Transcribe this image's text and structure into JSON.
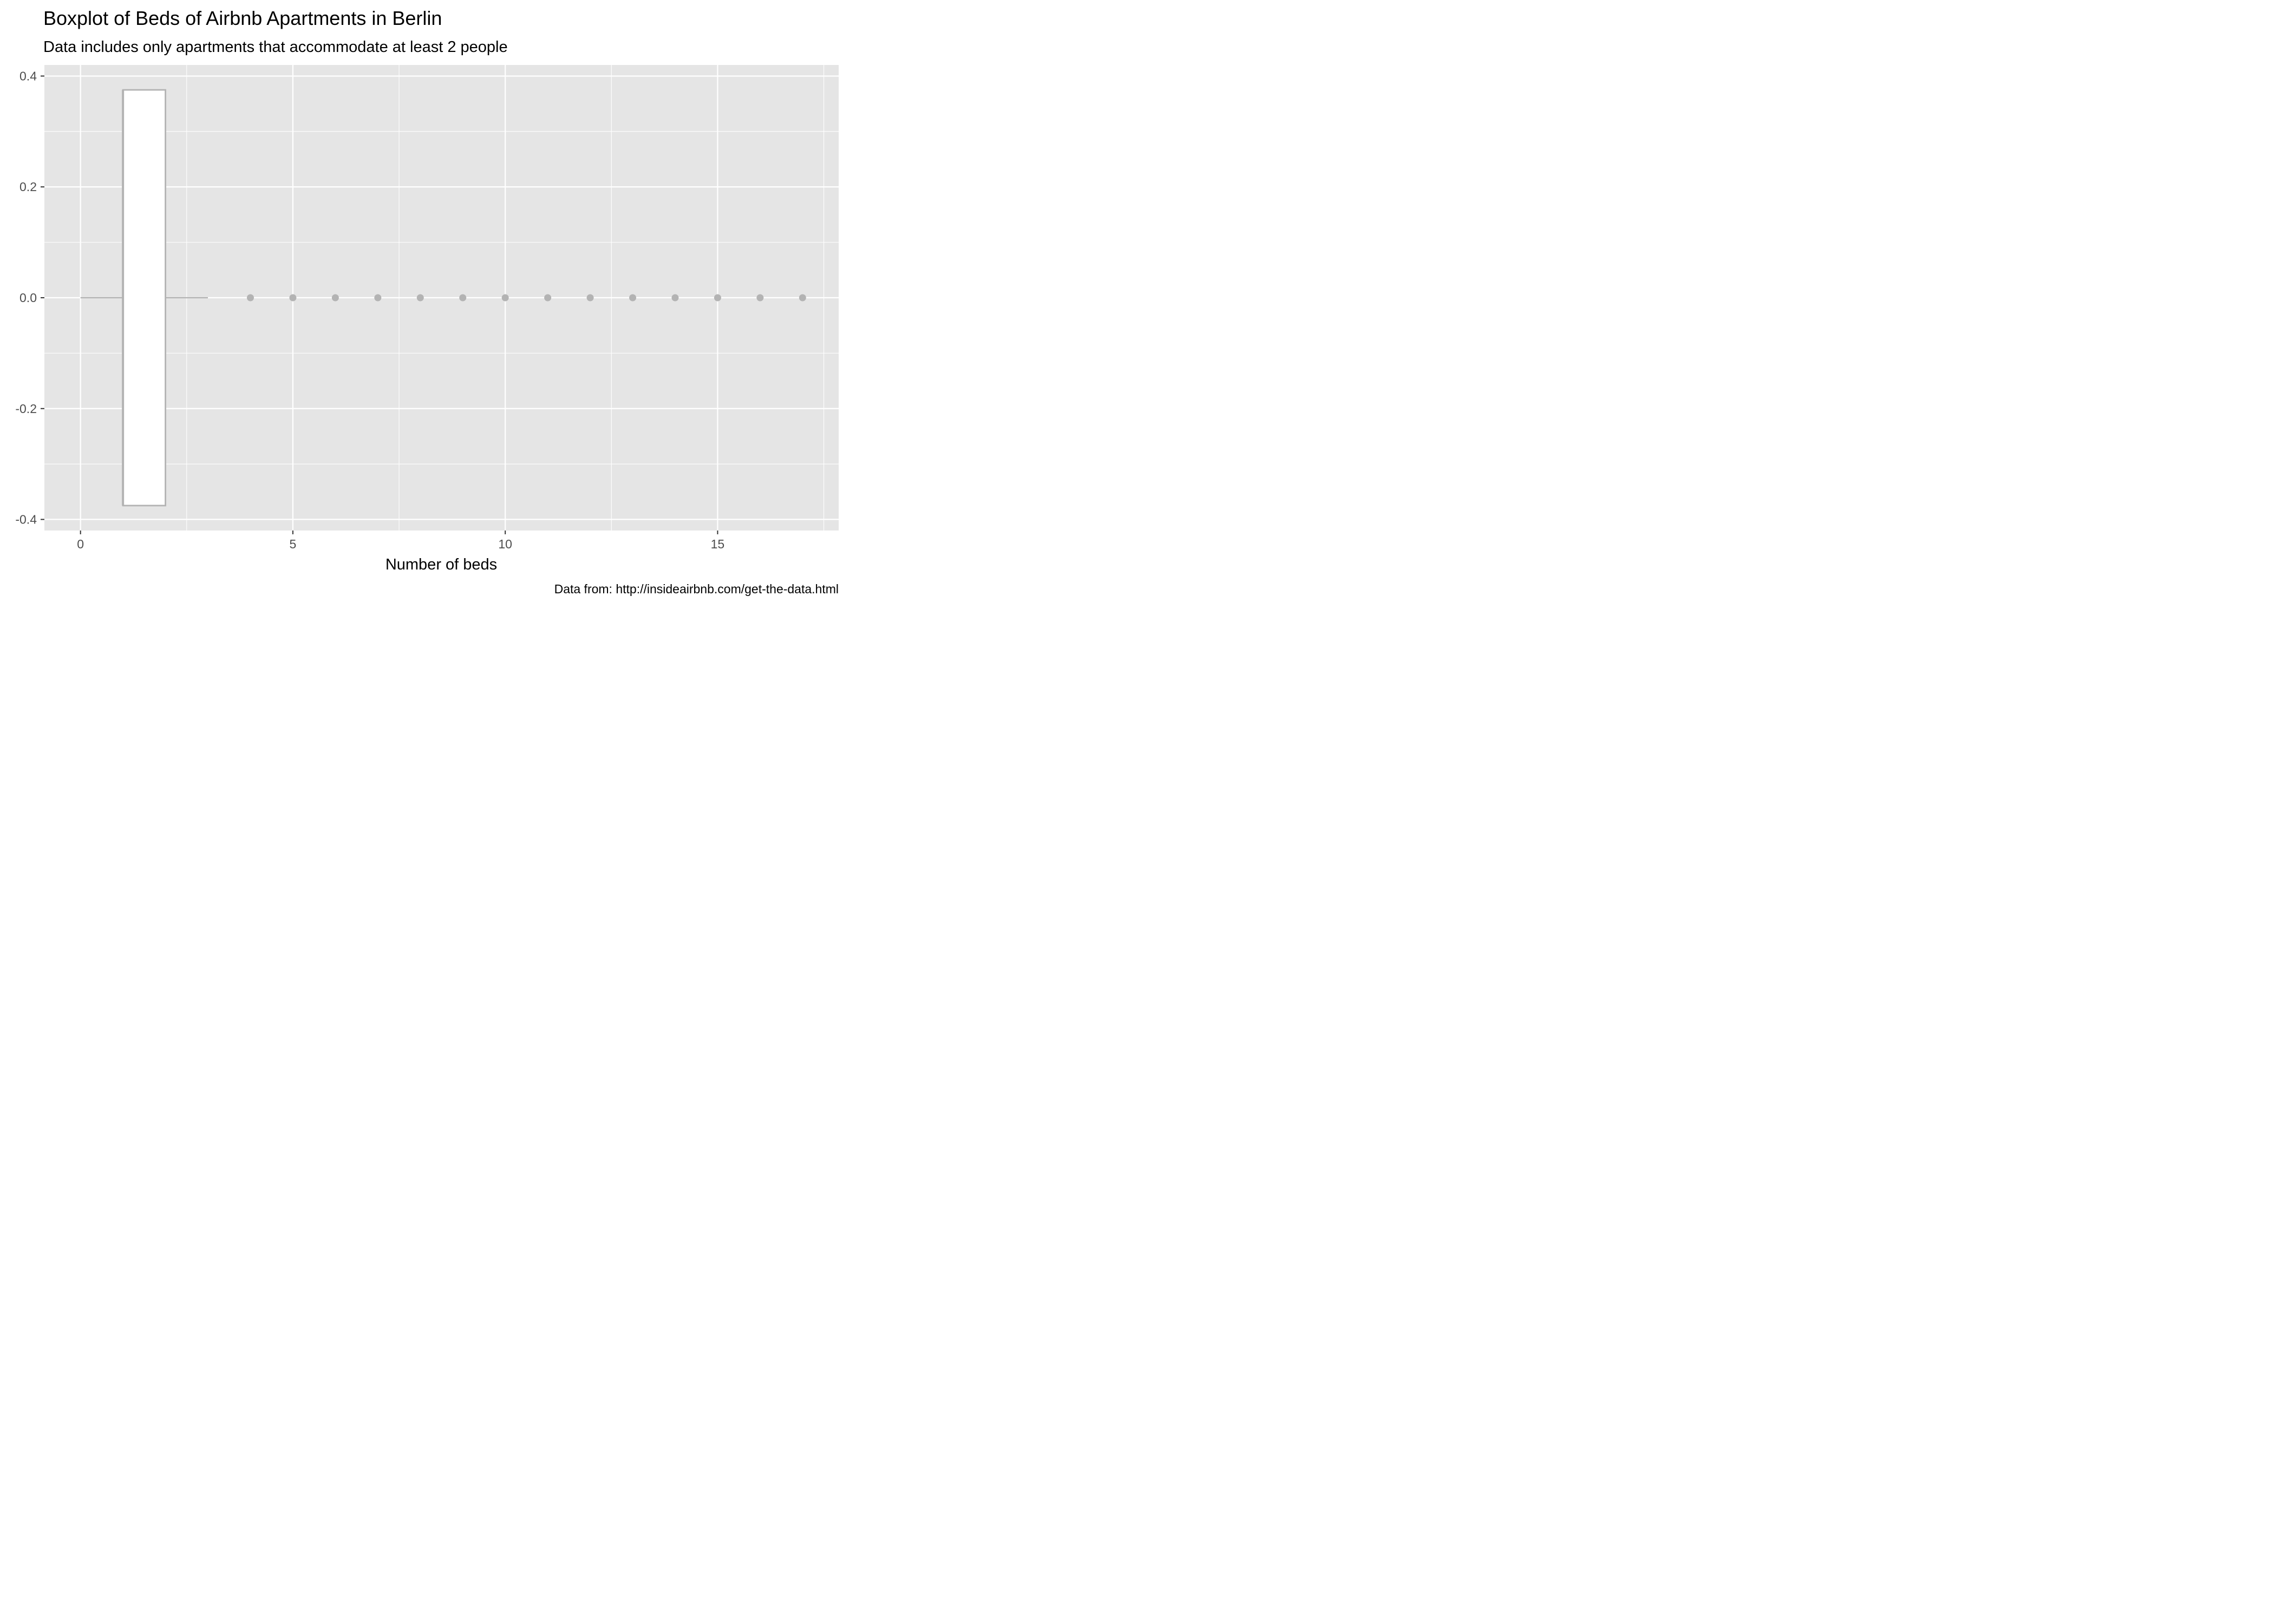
{
  "chart_data": {
    "type": "boxplot",
    "title": "Boxplot of Beds of Airbnb Apartments in Berlin",
    "subtitle": "Data includes only apartments that accommodate at least 2 people",
    "caption": "Data from: http://insideairbnb.com/get-the-data.html",
    "xlabel": "Number of beds",
    "ylabel": "",
    "xlim": [
      -0.85,
      17.85
    ],
    "ylim": [
      -0.42,
      0.42
    ],
    "x_ticks": [
      0,
      5,
      10,
      15
    ],
    "x_tick_labels": [
      "0",
      "5",
      "10",
      "15"
    ],
    "y_ticks": [
      0.4,
      0.2,
      0.0,
      -0.2,
      -0.4
    ],
    "y_tick_labels": [
      "0.4",
      "0.2",
      "0.0",
      "-0.2",
      "-0.4"
    ],
    "grid": true,
    "box": {
      "whisker_low": 0,
      "q1": 1,
      "median": 1,
      "q3": 2,
      "whisker_high": 3,
      "box_half_height": 0.375
    },
    "outliers": [
      4,
      5,
      6,
      7,
      8,
      9,
      10,
      11,
      12,
      13,
      14,
      15,
      16,
      17
    ],
    "colors": {
      "panel": "#e5e5e5",
      "grid": "#ffffff",
      "box_fill": "#ffffff",
      "box_line": "#b3b3b3",
      "outlier": "#b3b3b3",
      "tick": "#333333"
    }
  }
}
